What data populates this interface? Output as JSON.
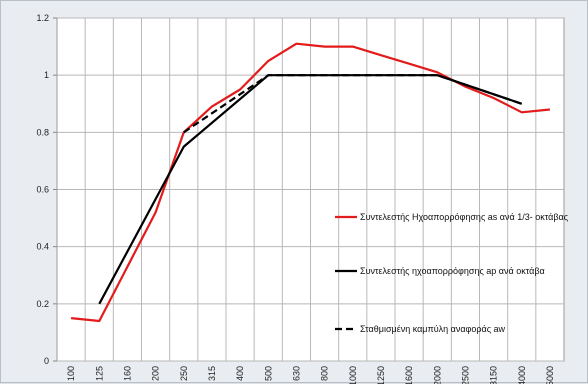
{
  "chart_data": {
    "type": "line",
    "x_ticks": [
      "100",
      "125",
      "160",
      "200",
      "250",
      "315",
      "400",
      "500",
      "630",
      "800",
      "1000",
      "1250",
      "1600",
      "2000",
      "2500",
      "3150",
      "4000",
      "5000"
    ],
    "ylim": [
      0,
      1.2
    ],
    "y_ticks": [
      "0",
      "0.2",
      "0.4",
      "0.6",
      "0.8",
      "1",
      "1.2"
    ],
    "grid": true,
    "legend_position": "right-middle",
    "series": [
      {
        "name": "Συντελεστής Ηχοαπορρόφησης  as ανά 1/3- οκτάβας",
        "color": "#e31b1b",
        "dash": "solid",
        "points": [
          [
            "100",
            0.15
          ],
          [
            "125",
            0.14
          ],
          [
            "160",
            0.33
          ],
          [
            "200",
            0.52
          ],
          [
            "250",
            0.8
          ],
          [
            "315",
            0.89
          ],
          [
            "400",
            0.95
          ],
          [
            "500",
            1.05
          ],
          [
            "630",
            1.11
          ],
          [
            "800",
            1.1
          ],
          [
            "1000",
            1.1
          ],
          [
            "1250",
            1.07
          ],
          [
            "1600",
            1.04
          ],
          [
            "2000",
            1.01
          ],
          [
            "2500",
            0.96
          ],
          [
            "3150",
            0.92
          ],
          [
            "4000",
            0.87
          ],
          [
            "5000",
            0.88
          ]
        ]
      },
      {
        "name": "Συντελεστής ηχοαπορρόφησης ap ανά οκτάβα",
        "color": "#000000",
        "dash": "solid",
        "points": [
          [
            "125",
            0.2
          ],
          [
            "250",
            0.75
          ],
          [
            "500",
            1.0
          ],
          [
            "1000",
            1.0
          ],
          [
            "2000",
            1.0
          ],
          [
            "4000",
            0.9
          ]
        ]
      },
      {
        "name": "Σταθμισμένη καμπύλη αναφοράς aw",
        "color": "#000000",
        "dash": "dashed",
        "points": [
          [
            "250",
            0.8
          ],
          [
            "500",
            1.0
          ],
          [
            "1000",
            1.0
          ],
          [
            "2000",
            1.0
          ],
          [
            "4000",
            0.9
          ]
        ]
      }
    ]
  }
}
